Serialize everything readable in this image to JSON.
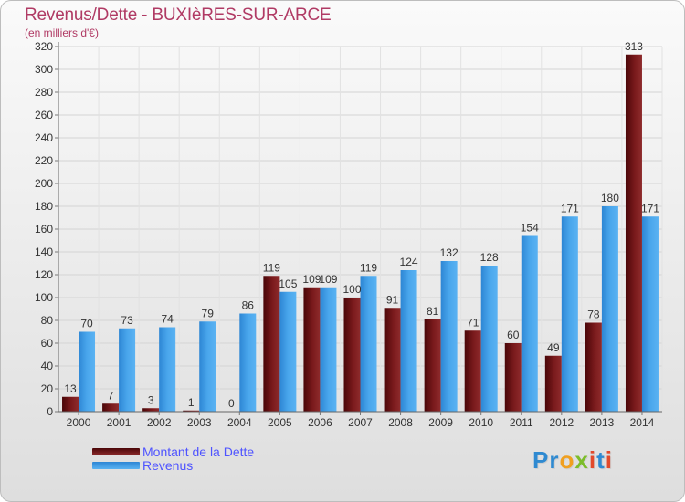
{
  "header": {
    "title": "Revenus/Dette - BUXIèRES-SUR-ARCE",
    "subtitle": "(en milliers d'€)"
  },
  "colors": {
    "title": "#b03a64",
    "dette": "#6b0f12",
    "revenus": "#3b9be3",
    "legend_text": "#4f54ff"
  },
  "legend": {
    "items": [
      {
        "label": "Montant de la Dette",
        "color": "#6b0f12"
      },
      {
        "label": "Revenus",
        "color": "#3b9be3"
      }
    ],
    "placement": "bottom-left"
  },
  "brand": {
    "letters": [
      {
        "ch": "P",
        "color": "#2f8ad1"
      },
      {
        "ch": "r",
        "color": "#2f8ad1"
      },
      {
        "ch": "o",
        "color": "#f0a020"
      },
      {
        "ch": "x",
        "color": "#7cbd2a"
      },
      {
        "ch": "i",
        "color": "#e24a2b"
      },
      {
        "ch": "t",
        "color": "#2f8ad1"
      },
      {
        "ch": "i",
        "color": "#e24a2b"
      }
    ]
  },
  "chart_data": {
    "type": "bar",
    "title": "Revenus/Dette - BUXIèRES-SUR-ARCE",
    "subtitle": "(en milliers d'€)",
    "categories": [
      "2000",
      "2001",
      "2002",
      "2003",
      "2004",
      "2005",
      "2006",
      "2007",
      "2008",
      "2009",
      "2010",
      "2011",
      "2012",
      "2013",
      "2014"
    ],
    "series": [
      {
        "name": "Montant de la Dette",
        "values": [
          13,
          7,
          3,
          1,
          0,
          119,
          109,
          100,
          91,
          81,
          71,
          60,
          49,
          78,
          313
        ]
      },
      {
        "name": "Revenus",
        "values": [
          70,
          73,
          74,
          79,
          86,
          105,
          109,
          119,
          124,
          132,
          128,
          154,
          171,
          180,
          171
        ]
      }
    ],
    "ylim": [
      0,
      320
    ],
    "yticks": [
      0,
      20,
      40,
      60,
      80,
      100,
      120,
      140,
      160,
      180,
      200,
      220,
      240,
      260,
      280,
      300,
      320
    ],
    "grid": true,
    "legend_position": "bottom-left"
  }
}
